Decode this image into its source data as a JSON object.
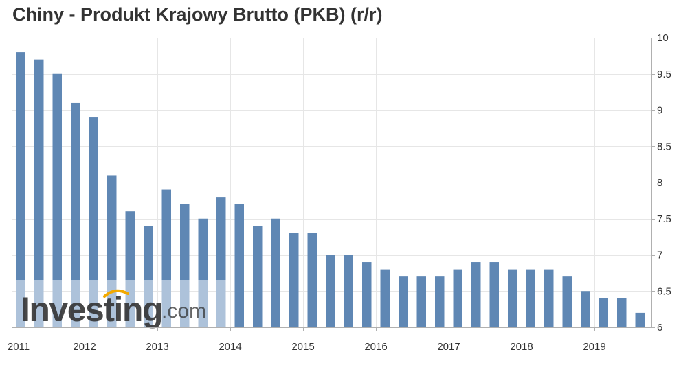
{
  "chart_data": {
    "type": "bar",
    "title": "Chiny - Produkt Krajowy Brutto (PKB) (r/r)",
    "xlabel": "",
    "ylabel": "",
    "ylim": [
      6,
      10
    ],
    "yticks": [
      6,
      6.5,
      7,
      7.5,
      8,
      8.5,
      9,
      9.5,
      10
    ],
    "ytick_labels": [
      "6",
      "6.5",
      "7",
      "7.5",
      "8",
      "8.5",
      "9",
      "9.5",
      "10"
    ],
    "year_labels": [
      "2011",
      "2012",
      "2013",
      "2014",
      "2015",
      "2016",
      "2017",
      "2018",
      "2019"
    ],
    "categories": [
      "2011Q1",
      "2011Q2",
      "2011Q3",
      "2011Q4",
      "2012Q1",
      "2012Q2",
      "2012Q3",
      "2012Q4",
      "2013Q1",
      "2013Q2",
      "2013Q3",
      "2013Q4",
      "2014Q1",
      "2014Q2",
      "2014Q3",
      "2014Q4",
      "2015Q1",
      "2015Q2",
      "2015Q3",
      "2015Q4",
      "2016Q1",
      "2016Q2",
      "2016Q3",
      "2016Q4",
      "2017Q1",
      "2017Q2",
      "2017Q3",
      "2017Q4",
      "2018Q1",
      "2018Q2",
      "2018Q3",
      "2018Q4",
      "2019Q1",
      "2019Q2",
      "2019Q3"
    ],
    "values": [
      9.8,
      9.7,
      9.5,
      9.1,
      8.9,
      8.1,
      7.6,
      7.4,
      7.9,
      7.7,
      7.5,
      7.8,
      7.7,
      7.4,
      7.5,
      7.3,
      7.3,
      7.0,
      7.0,
      6.9,
      6.8,
      6.7,
      6.7,
      6.7,
      6.8,
      6.9,
      6.9,
      6.8,
      6.8,
      6.8,
      6.7,
      6.5,
      6.4,
      6.4,
      6.2
    ],
    "grid": true,
    "legend": "none",
    "y_axis_position": "right"
  },
  "colors": {
    "bar": "#5f87b4",
    "bar_faded": "#adc2da",
    "grid": "#e6e6e6",
    "title": "#333333",
    "watermark_text": "#333333",
    "watermark_accent": "#f2a900"
  },
  "watermark": {
    "brand": "Investing",
    "suffix": ".com"
  }
}
